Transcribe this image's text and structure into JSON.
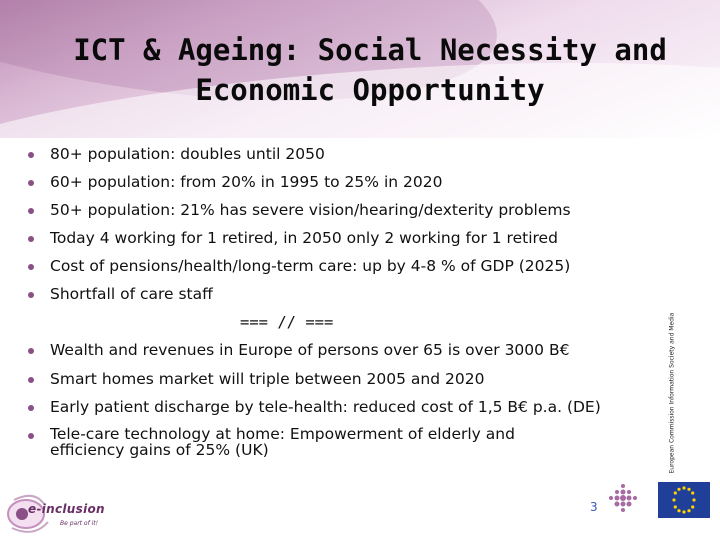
{
  "slide": {
    "title_line1": "ICT & Ageing: Social Necessity and",
    "title_line2": "Economic Opportunity",
    "bullets_top": [
      "80+ population: doubles until 2050",
      "60+ population: from 20% in 1995 to 25% in 2020",
      "50+ population: 21% has severe vision/hearing/dexterity problems",
      "Today 4 working for 1 retired, in 2050 only 2 working for 1 retired",
      "Cost of pensions/health/long-term care: up by 4-8 % of GDP (2025)",
      "Shortfall of care staff"
    ],
    "separator": "=== // ===",
    "bullets_bottom": [
      "Wealth and revenues in Europe of persons over 65 is over 3000 B€",
      "Smart homes market will triple between 2005 and 2020",
      "Early patient discharge by tele-health: reduced cost of 1,5 B€ p.a. (DE)",
      "Tele-care technology at home: Empowerment of elderly and efficiency gains of 25% (UK)"
    ],
    "page_number": "3"
  },
  "branding": {
    "logo_text": "e-inclusion",
    "logo_tagline": "Be part of it!",
    "ec_vertical_text": "European Commission Information Society and Media",
    "accent_color": "#8a4f86",
    "page_number_color": "#3a58b3",
    "eu_flag_color": "#1f3f99",
    "eu_star_color": "#ffd200"
  }
}
